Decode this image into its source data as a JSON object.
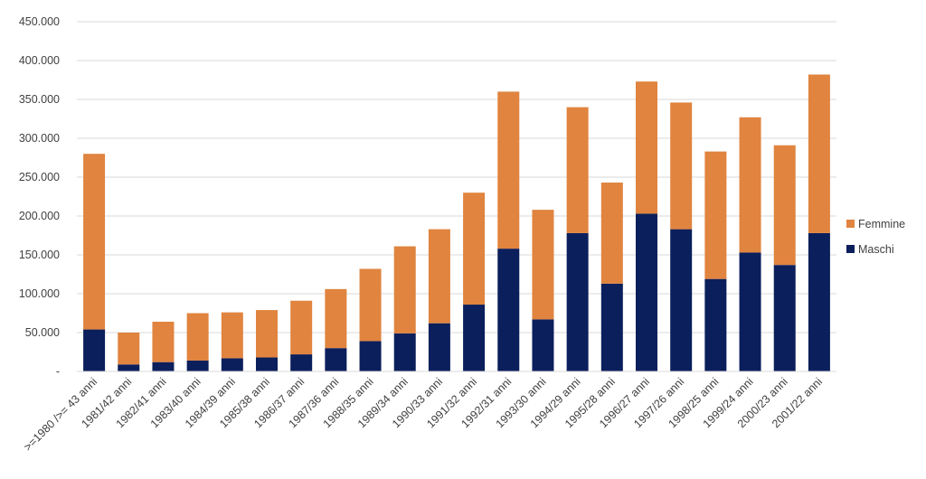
{
  "chart_data": {
    "type": "bar",
    "stacked": true,
    "title": "",
    "xlabel": "",
    "ylabel": "",
    "ylim": [
      0,
      450000
    ],
    "y_ticks": [
      0,
      50000,
      100000,
      150000,
      200000,
      250000,
      300000,
      350000,
      400000,
      450000
    ],
    "y_tick_labels": [
      "-",
      "50.000",
      "100.000",
      "150.000",
      "200.000",
      "250.000",
      "300.000",
      "350.000",
      "400.000",
      "450.000"
    ],
    "grid": true,
    "legend_position": "right",
    "categories": [
      ">=1980 />= 43 anni",
      "1981/42 anni",
      "1982/41 anni",
      "1983/40 anni",
      "1984/39 anni",
      "1985/38 anni",
      "1986/37 anni",
      "1987/36 anni",
      "1988/35 anni",
      "1989/34 anni",
      "1990/33 anni",
      "1991/32 anni",
      "1992/31 anni",
      "1993/30 anni",
      "1994/29 anni",
      "1995/28 anni",
      "1996/27 anni",
      "1997/26 anni",
      "1998/25 anni",
      "1999/24 anni",
      "2000/23 anni",
      "2001/22 anni"
    ],
    "series": [
      {
        "name": "Maschi",
        "color": "#0B1F5C",
        "values": [
          54000,
          9000,
          12000,
          14000,
          17000,
          18000,
          22000,
          30000,
          39000,
          49000,
          62000,
          86000,
          158000,
          67000,
          178000,
          113000,
          203000,
          183000,
          119000,
          153000,
          137000,
          178000
        ]
      },
      {
        "name": "Femmine",
        "color": "#E0843F",
        "values": [
          226000,
          41000,
          52000,
          61000,
          59000,
          61000,
          69000,
          76000,
          93000,
          112000,
          121000,
          144000,
          202000,
          141000,
          162000,
          130000,
          170000,
          163000,
          164000,
          174000,
          154000,
          204000
        ]
      }
    ],
    "legend_order": [
      "Femmine",
      "Maschi"
    ]
  }
}
